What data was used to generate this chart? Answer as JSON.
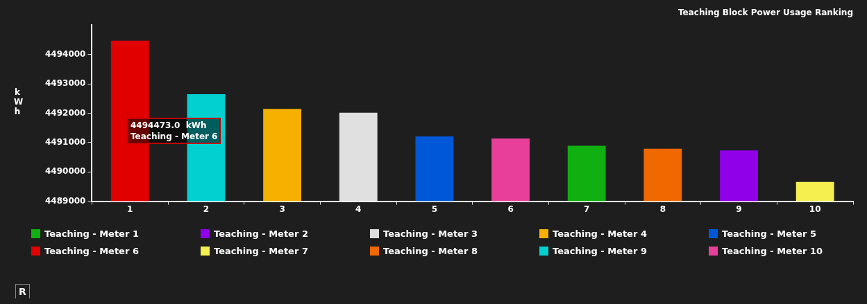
{
  "chart_data": {
    "type": "bar",
    "title": "Teaching Block Power Usage Ranking",
    "ylabel": "kWh",
    "categories": [
      "1",
      "2",
      "3",
      "4",
      "5",
      "6",
      "7",
      "8",
      "9",
      "10"
    ],
    "series": [
      {
        "name": "Teaching - Meter 1",
        "color": "#10b010",
        "values": [
          null,
          null,
          null,
          null,
          null,
          null,
          4490890,
          null,
          null,
          null
        ]
      },
      {
        "name": "Teaching - Meter 2",
        "color": "#9000e8",
        "values": [
          null,
          null,
          null,
          null,
          null,
          null,
          null,
          null,
          4490730,
          null
        ]
      },
      {
        "name": "Teaching - Meter 3",
        "color": "#e0e0e0",
        "values": [
          null,
          null,
          null,
          4492020,
          null,
          null,
          null,
          null,
          null,
          null
        ]
      },
      {
        "name": "Teaching - Meter 4",
        "color": "#f5b000",
        "values": [
          null,
          null,
          4492150,
          null,
          null,
          null,
          null,
          null,
          null,
          null
        ]
      },
      {
        "name": "Teaching - Meter 5",
        "color": "#0058d8",
        "values": [
          null,
          null,
          null,
          null,
          4491210,
          null,
          null,
          null,
          null,
          null
        ]
      },
      {
        "name": "Teaching - Meter 6",
        "color": "#e00000",
        "values": [
          4494473,
          null,
          null,
          null,
          null,
          null,
          null,
          null,
          null,
          null
        ]
      },
      {
        "name": "Teaching - Meter 7",
        "color": "#f5f050",
        "values": [
          null,
          null,
          null,
          null,
          null,
          null,
          null,
          null,
          null,
          4489660
        ]
      },
      {
        "name": "Teaching - Meter 8",
        "color": "#f06800",
        "values": [
          null,
          null,
          null,
          null,
          null,
          null,
          null,
          4490790,
          null,
          null
        ]
      },
      {
        "name": "Teaching - Meter 9",
        "color": "#00d0d0",
        "values": [
          null,
          4492650,
          null,
          null,
          null,
          null,
          null,
          null,
          null,
          null
        ]
      },
      {
        "name": "Teaching - Meter 10",
        "color": "#e8409a",
        "values": [
          null,
          null,
          null,
          null,
          null,
          4491140,
          null,
          null,
          null,
          null
        ]
      }
    ],
    "ylim": [
      4489000,
      4495000
    ],
    "yticks": [
      4489000,
      4490000,
      4491000,
      4492000,
      4493000,
      4494000
    ],
    "legend": "bottom",
    "annotations": [
      "4494473.0  kWh",
      "Teaching - Meter 6",
      "R"
    ]
  }
}
